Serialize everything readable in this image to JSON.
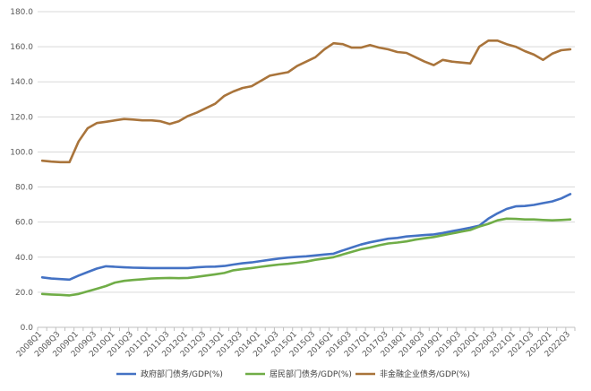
{
  "chart_data": {
    "type": "line",
    "title": "",
    "xlabel": "",
    "ylabel": "",
    "ylim": [
      0,
      180
    ],
    "ytick_step": 20,
    "ytick_labels": [
      "0.0",
      "20.0",
      "40.0",
      "60.0",
      "80.0",
      "100.0",
      "120.0",
      "140.0",
      "160.0",
      "180.0"
    ],
    "grid": "horizontal",
    "legend_position": "bottom",
    "x": [
      "2008Q1",
      "2008Q2",
      "2008Q3",
      "2008Q4",
      "2009Q1",
      "2009Q2",
      "2009Q3",
      "2009Q4",
      "2010Q1",
      "2010Q2",
      "2010Q3",
      "2010Q4",
      "2011Q1",
      "2011Q2",
      "2011Q3",
      "2011Q4",
      "2012Q1",
      "2012Q2",
      "2012Q3",
      "2012Q4",
      "2013Q1",
      "2013Q2",
      "2013Q3",
      "2013Q4",
      "2014Q1",
      "2014Q2",
      "2014Q3",
      "2014Q4",
      "2015Q1",
      "2015Q2",
      "2015Q3",
      "2015Q4",
      "2016Q1",
      "2016Q2",
      "2016Q3",
      "2016Q4",
      "2017Q1",
      "2017Q2",
      "2017Q3",
      "2017Q4",
      "2018Q1",
      "2018Q2",
      "2018Q3",
      "2018Q4",
      "2019Q1",
      "2019Q2",
      "2019Q3",
      "2019Q4",
      "2020Q1",
      "2020Q2",
      "2020Q3",
      "2020Q4",
      "2021Q1",
      "2021Q2",
      "2021Q3",
      "2021Q4",
      "2022Q1",
      "2022Q2",
      "2022Q3"
    ],
    "x_tick_labels": [
      "2008Q1",
      "2008Q3",
      "2009Q1",
      "2009Q3",
      "2010Q1",
      "2010Q3",
      "2011Q1",
      "2011Q3",
      "2012Q1",
      "2012Q3",
      "2013Q1",
      "2013Q3",
      "2014Q1",
      "2014Q3",
      "2015Q1",
      "2015Q3",
      "2016Q1",
      "2016Q3",
      "2017Q1",
      "2017Q3",
      "2018Q1",
      "2018Q3",
      "2019Q1",
      "2019Q3",
      "2020Q1",
      "2020Q3",
      "2021Q1",
      "2021Q3",
      "2022Q1",
      "2022Q3"
    ],
    "series": [
      {
        "name": "政府部门债务/GDP(%)",
        "color": "#4472C4",
        "values": [
          28.5,
          27.8,
          27.5,
          27.2,
          29.5,
          31.5,
          33.5,
          34.8,
          34.5,
          34.2,
          34.0,
          33.9,
          33.8,
          33.8,
          33.8,
          33.8,
          33.8,
          34.2,
          34.5,
          34.6,
          35.0,
          35.8,
          36.5,
          37.0,
          37.8,
          38.5,
          39.2,
          39.8,
          40.2,
          40.5,
          41.0,
          41.5,
          42.0,
          43.8,
          45.5,
          47.2,
          48.5,
          49.5,
          50.5,
          51.0,
          51.8,
          52.2,
          52.6,
          53.0,
          53.8,
          54.8,
          55.8,
          56.8,
          58.0,
          62.0,
          65.0,
          67.5,
          69.0,
          69.2,
          69.8,
          70.8,
          71.8,
          73.5,
          76.0
        ]
      },
      {
        "name": "居民部门债务/GDP(%)",
        "color": "#70AD47",
        "values": [
          19.0,
          18.7,
          18.5,
          18.2,
          19.0,
          20.5,
          22.0,
          23.5,
          25.5,
          26.5,
          27.0,
          27.4,
          27.8,
          28.0,
          28.2,
          28.0,
          28.2,
          28.8,
          29.5,
          30.2,
          31.0,
          32.5,
          33.2,
          33.8,
          34.5,
          35.2,
          35.8,
          36.2,
          36.8,
          37.5,
          38.5,
          39.2,
          40.0,
          41.5,
          43.0,
          44.5,
          45.5,
          46.8,
          47.8,
          48.3,
          49.0,
          50.0,
          50.8,
          51.5,
          52.5,
          53.5,
          54.5,
          55.5,
          57.5,
          59.0,
          61.0,
          62.0,
          61.8,
          61.5,
          61.5,
          61.2,
          61.0,
          61.2,
          61.5
        ]
      },
      {
        "name": "非金融企业债务/GDP(%)",
        "color": "#A9743B",
        "values": [
          95.0,
          94.5,
          94.2,
          94.2,
          106.0,
          113.5,
          116.5,
          117.2,
          118.0,
          118.8,
          118.5,
          118.0,
          118.0,
          117.5,
          116.0,
          117.5,
          120.5,
          122.5,
          125.0,
          127.5,
          132.0,
          134.5,
          136.5,
          137.5,
          140.5,
          143.5,
          144.5,
          145.5,
          149.0,
          151.5,
          154.0,
          158.5,
          162.0,
          161.5,
          159.5,
          159.5,
          161.0,
          159.5,
          158.5,
          157.0,
          156.5,
          154.0,
          151.5,
          149.5,
          152.5,
          151.5,
          151.0,
          150.5,
          160.0,
          163.5,
          163.5,
          161.5,
          160.0,
          157.5,
          155.5,
          152.5,
          156.0,
          158.0,
          158.5
        ]
      }
    ]
  }
}
